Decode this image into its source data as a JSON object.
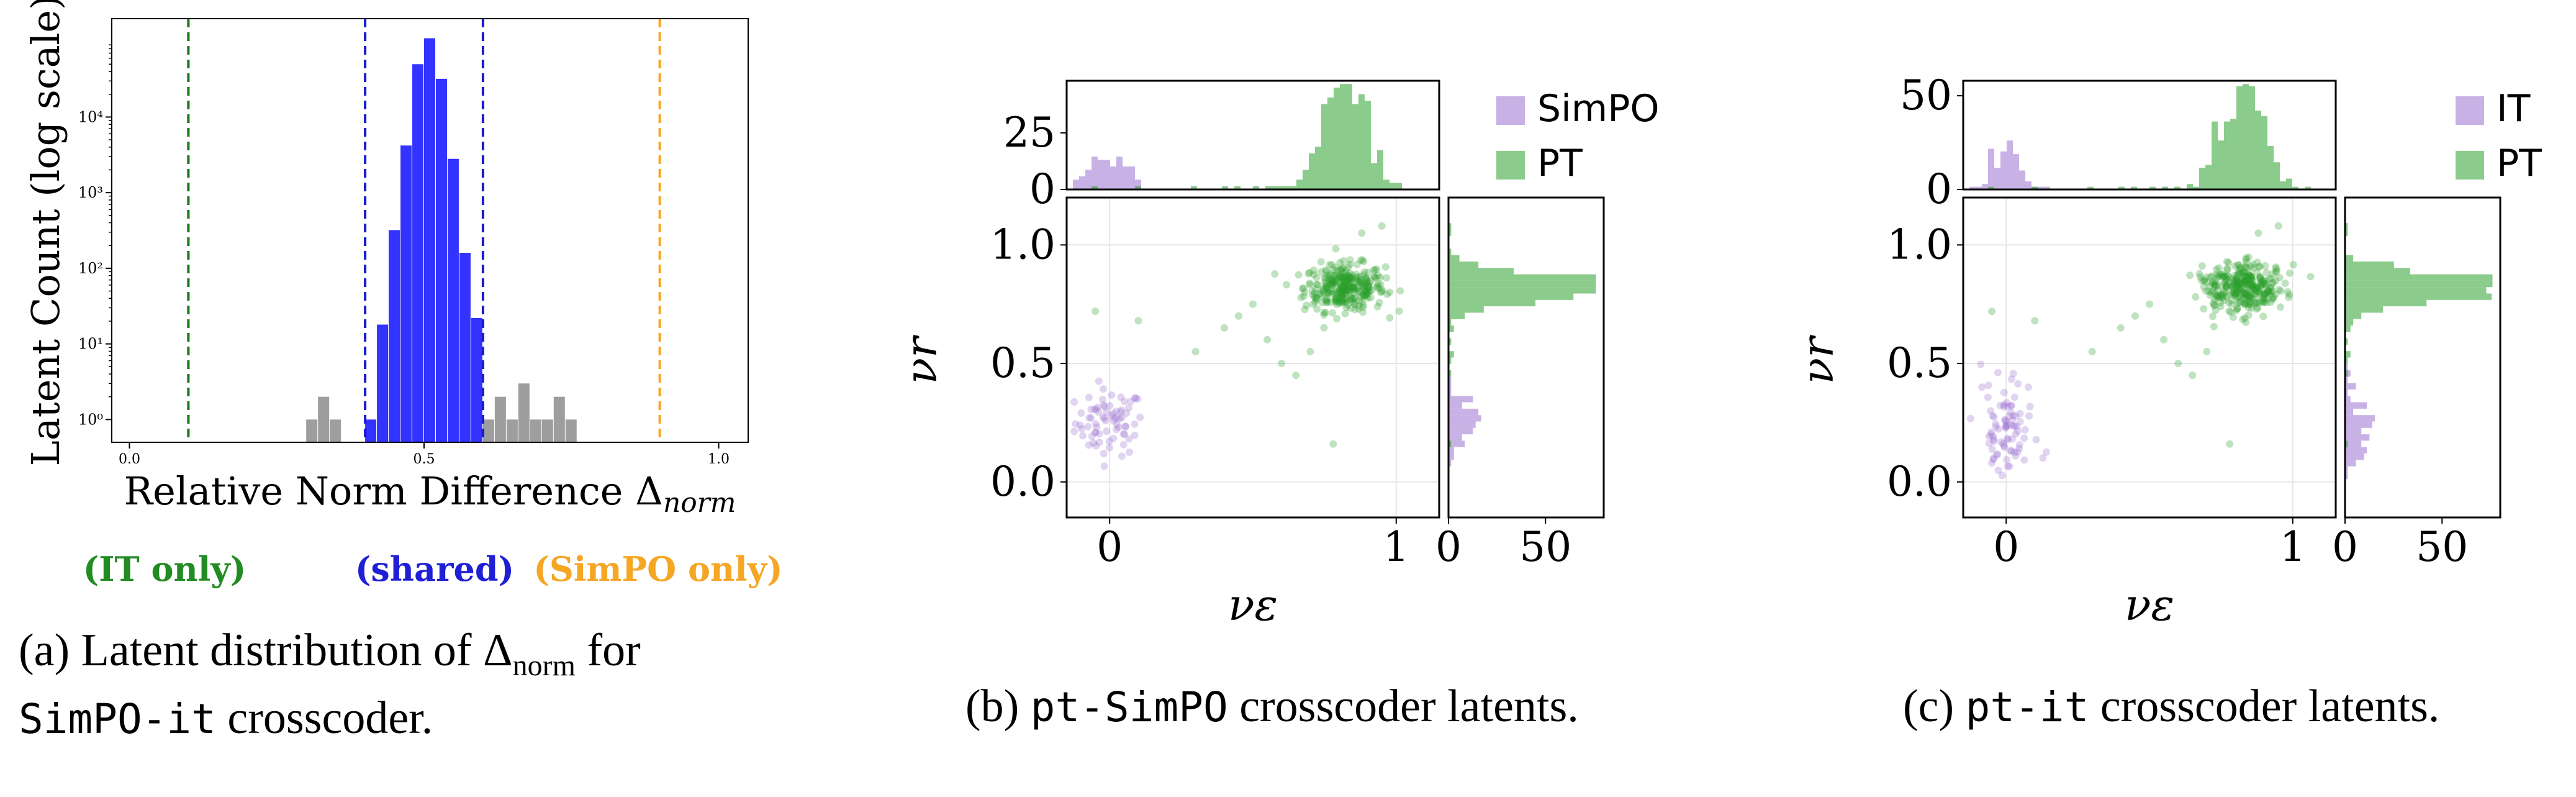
{
  "chart_data": [
    {
      "type": "bar",
      "panel": "a",
      "xlabel": "Relative Norm Difference Δnorm",
      "ylabel": "Latent Count (log scale)",
      "yscale": "log",
      "xlim": [
        -0.03,
        1.05
      ],
      "ylim": [
        0.5,
        200000
      ],
      "xticks": [
        "0.0",
        "0.5",
        "1.0"
      ],
      "yticks": [
        "10⁰",
        "10¹",
        "10²",
        "10³",
        "10⁴"
      ],
      "bin_width": 0.02,
      "series": [
        {
          "name": "gray",
          "color": "#9e9e9e",
          "bins": [
            [
              0.3,
              1
            ],
            [
              0.32,
              2
            ],
            [
              0.34,
              1
            ],
            [
              0.6,
              1
            ],
            [
              0.62,
              2
            ],
            [
              0.64,
              1
            ],
            [
              0.66,
              3
            ],
            [
              0.68,
              1
            ],
            [
              0.7,
              1
            ],
            [
              0.72,
              2
            ],
            [
              0.74,
              1
            ]
          ]
        },
        {
          "name": "blue",
          "color": "#3333ff",
          "bins": [
            [
              0.4,
              1
            ],
            [
              0.42,
              18
            ],
            [
              0.44,
              320
            ],
            [
              0.46,
              4200
            ],
            [
              0.48,
              50000
            ],
            [
              0.5,
              110000
            ],
            [
              0.52,
              32000
            ],
            [
              0.54,
              2800
            ],
            [
              0.56,
              160
            ],
            [
              0.58,
              22
            ]
          ]
        }
      ],
      "vlines": [
        {
          "x": 0.1,
          "color": "#1a7a1a"
        },
        {
          "x": 0.4,
          "color": "#1a1acc"
        },
        {
          "x": 0.6,
          "color": "#1a1acc"
        },
        {
          "x": 0.9,
          "color": "#f5a623"
        }
      ],
      "annotations": [
        {
          "text": "(IT only)",
          "color": "#228b22"
        },
        {
          "text": "(shared)",
          "color": "#1f1fd6"
        },
        {
          "text": "(SimPO only)",
          "color": "#f5a623"
        }
      ],
      "caption_prefix": "(a) Latent distribution of Δ",
      "caption_sub": "norm",
      "caption_mid": " for",
      "caption_mono": "SimPO-it",
      "caption_suffix": " crosscoder."
    },
    {
      "type": "scatter",
      "panel": "b",
      "xlabel": "νε",
      "ylabel": "νr",
      "xlim": [
        -0.15,
        1.15
      ],
      "ylim": [
        -0.15,
        1.2
      ],
      "xticks": [
        "0",
        "1"
      ],
      "yticks": [
        "0.0",
        "0.5",
        "1.0"
      ],
      "top_hist_yticks": [
        "0",
        "25"
      ],
      "top_hist_ymax": 48,
      "right_hist_xticks": [
        "0",
        "50"
      ],
      "right_hist_xmax": 80,
      "series": [
        {
          "name": "SimPO",
          "color": "#9b72cf",
          "center": [
            0.0,
            0.25
          ],
          "spread": [
            0.06,
            0.07
          ],
          "count": 75
        },
        {
          "name": "PT",
          "color": "#2ca02c",
          "center": [
            0.82,
            0.82
          ],
          "spread": [
            0.07,
            0.05
          ],
          "count": 320
        }
      ],
      "caption_open": "(b) ",
      "caption_mono": "pt-SimPO",
      "caption_rest": " crosscoder latents."
    },
    {
      "type": "scatter",
      "panel": "c",
      "xlabel": "νε",
      "ylabel": "νr",
      "xlim": [
        -0.15,
        1.15
      ],
      "ylim": [
        -0.15,
        1.2
      ],
      "xticks": [
        "0",
        "1"
      ],
      "yticks": [
        "0.0",
        "0.5",
        "1.0"
      ],
      "top_hist_yticks": [
        "0",
        "50"
      ],
      "top_hist_ymax": 58,
      "right_hist_xticks": [
        "0",
        "50"
      ],
      "right_hist_xmax": 80,
      "series": [
        {
          "name": "IT",
          "color": "#9b72cf",
          "center": [
            0.0,
            0.22
          ],
          "spread": [
            0.05,
            0.09
          ],
          "count": 85
        },
        {
          "name": "PT",
          "color": "#2ca02c",
          "center": [
            0.83,
            0.82
          ],
          "spread": [
            0.07,
            0.05
          ],
          "count": 330
        }
      ],
      "caption_open": "(c) ",
      "caption_mono": "pt-it",
      "caption_rest": " crosscoder latents."
    }
  ]
}
